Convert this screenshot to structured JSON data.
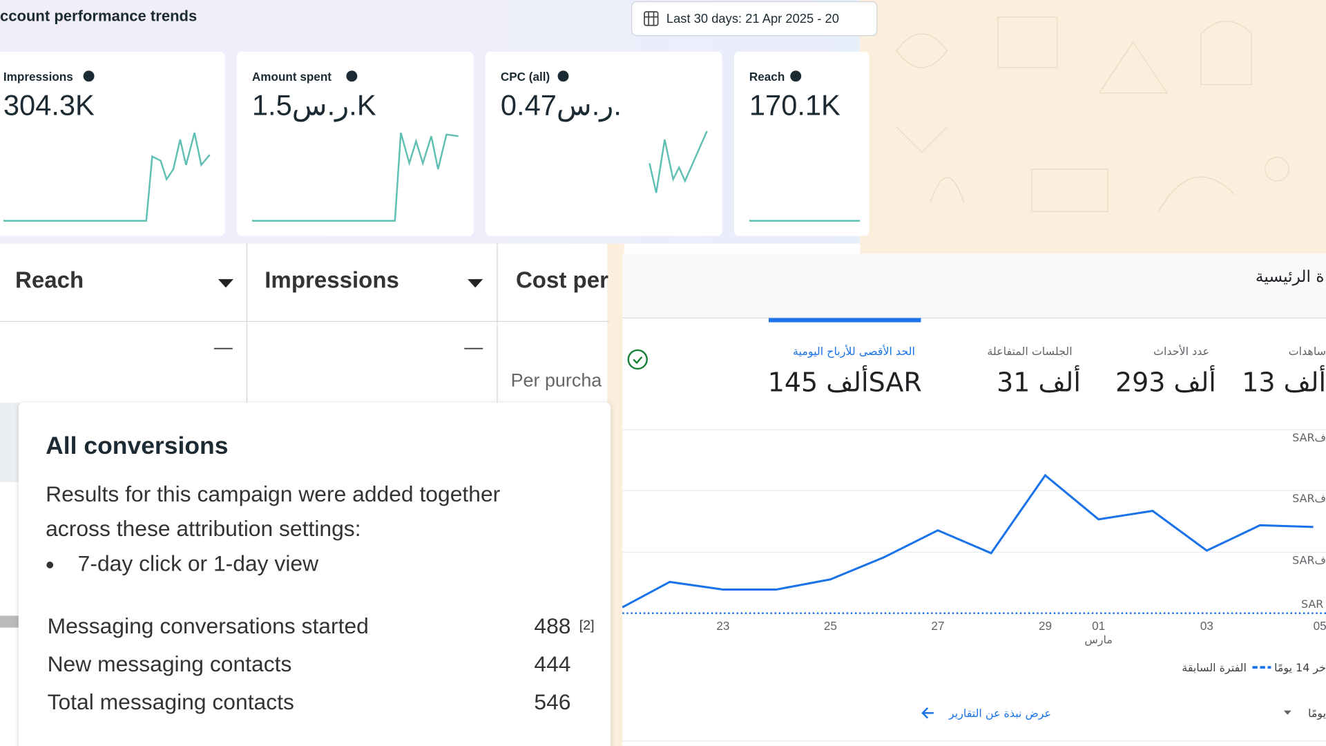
{
  "header": {
    "title": "ccount performance trends",
    "date_range": "Last 30 days: 21 Apr 2025 - 20"
  },
  "metric_cards": [
    {
      "label": "Impressions",
      "value": "304.3K"
    },
    {
      "label": "Amount spent",
      "value": "1.5ر.س.K"
    },
    {
      "label": "CPC (all)",
      "value": "0.47ر.س."
    },
    {
      "label": "Reach",
      "value": "170.1K"
    }
  ],
  "table": {
    "columns": [
      "Reach",
      "Impressions",
      "Cost per"
    ],
    "cells": [
      "—",
      "—",
      "Per purcha"
    ]
  },
  "tooltip": {
    "title": "All conversions",
    "description_lines": [
      "Results for this campaign were added together",
      "across these attribution settings:"
    ],
    "bullet": "7-day click or 1-day view",
    "rows": [
      {
        "label": "Messaging conversations started",
        "value": "488",
        "note": "[2]"
      },
      {
        "label": "New messaging contacts",
        "value": "444"
      },
      {
        "label": "Total messaging contacts",
        "value": "546"
      }
    ]
  },
  "arabic_panel": {
    "title": "ة الرئيسية",
    "metrics": [
      {
        "label": "الحد الأقصى للأرباح اليومية",
        "value": "145 ألفSAR"
      },
      {
        "label": "الجلسات المتفاعلة",
        "value": "31 ألف"
      },
      {
        "label": "عدد الأحداث",
        "value": "293 ألف"
      },
      {
        "label": "ساهدات",
        "value": "13 ألف"
      }
    ],
    "y_labels": [
      "SARف",
      "SARف",
      "SARف",
      "SAR"
    ],
    "x_labels": [
      "23",
      "25",
      "27",
      "29",
      "01",
      "03",
      "05"
    ],
    "month": "مارس",
    "legend": [
      "خر 14 يومًا",
      "الفترة السابقة"
    ],
    "link": "عرض نبذة عن التقارير",
    "dropdown": "يومًا"
  }
}
